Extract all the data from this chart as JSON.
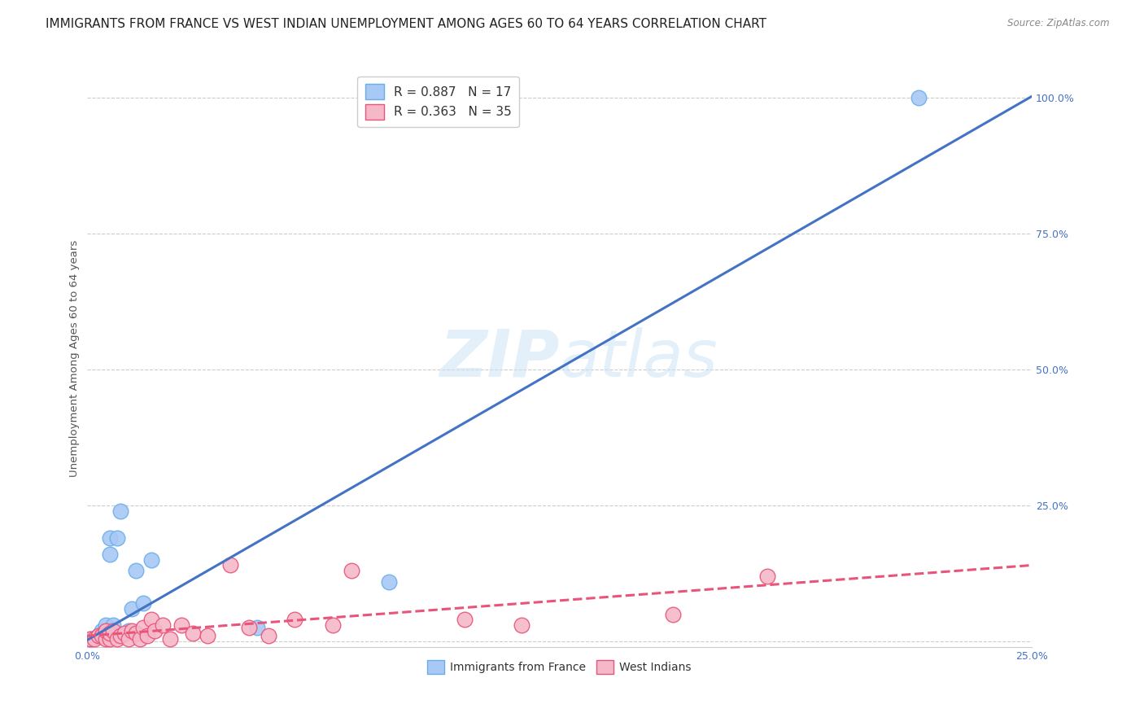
{
  "title": "IMMIGRANTS FROM FRANCE VS WEST INDIAN UNEMPLOYMENT AMONG AGES 60 TO 64 YEARS CORRELATION CHART",
  "source": "Source: ZipAtlas.com",
  "ylabel_label": "Unemployment Among Ages 60 to 64 years",
  "right_yticks": [
    0.0,
    0.25,
    0.5,
    0.75,
    1.0
  ],
  "right_yticklabels": [
    "",
    "25.0%",
    "50.0%",
    "75.0%",
    "100.0%"
  ],
  "xlim": [
    0.0,
    0.25
  ],
  "ylim": [
    -0.01,
    1.05
  ],
  "watermark_zip": "ZIP",
  "watermark_atlas": "atlas",
  "legend_line1": "R = 0.887   N = 17",
  "legend_line2": "R = 0.363   N = 35",
  "france_scatter_x": [
    0.001,
    0.003,
    0.004,
    0.005,
    0.006,
    0.006,
    0.007,
    0.008,
    0.009,
    0.011,
    0.012,
    0.013,
    0.015,
    0.017,
    0.045,
    0.08,
    0.22
  ],
  "france_scatter_y": [
    0.005,
    0.01,
    0.02,
    0.03,
    0.16,
    0.19,
    0.03,
    0.19,
    0.24,
    0.02,
    0.06,
    0.13,
    0.07,
    0.15,
    0.025,
    0.11,
    1.0
  ],
  "westindian_scatter_x": [
    0.001,
    0.002,
    0.003,
    0.004,
    0.005,
    0.005,
    0.006,
    0.006,
    0.007,
    0.008,
    0.009,
    0.01,
    0.011,
    0.012,
    0.013,
    0.014,
    0.015,
    0.016,
    0.017,
    0.018,
    0.02,
    0.022,
    0.025,
    0.028,
    0.032,
    0.038,
    0.043,
    0.048,
    0.055,
    0.065,
    0.07,
    0.1,
    0.115,
    0.155,
    0.18
  ],
  "westindian_scatter_y": [
    0.005,
    0.005,
    0.01,
    0.01,
    0.005,
    0.02,
    0.005,
    0.015,
    0.02,
    0.005,
    0.01,
    0.015,
    0.005,
    0.02,
    0.015,
    0.005,
    0.025,
    0.01,
    0.04,
    0.02,
    0.03,
    0.005,
    0.03,
    0.015,
    0.01,
    0.14,
    0.025,
    0.01,
    0.04,
    0.03,
    0.13,
    0.04,
    0.03,
    0.05,
    0.12
  ],
  "france_line_x": [
    0.0,
    0.25
  ],
  "france_line_y_intercept": 0.002,
  "france_line_slope": 4.0,
  "westindian_line_x": [
    0.0,
    0.25
  ],
  "westindian_line_y_intercept": 0.01,
  "westindian_line_slope": 0.52,
  "france_line_color": "#4472c4",
  "france_scatter_color": "#a8c8f5",
  "france_scatter_edge": "#6aaee8",
  "westindian_line_color": "#e8547a",
  "westindian_scatter_color": "#f5b8c8",
  "westindian_scatter_edge": "#e8547a",
  "background_color": "#ffffff",
  "grid_color": "#cccccc",
  "title_fontsize": 11,
  "axis_label_fontsize": 9.5,
  "tick_fontsize": 9,
  "right_tick_color": "#4472c4",
  "xtick_color": "#4472c4",
  "bottom_legend_color": "#333333"
}
